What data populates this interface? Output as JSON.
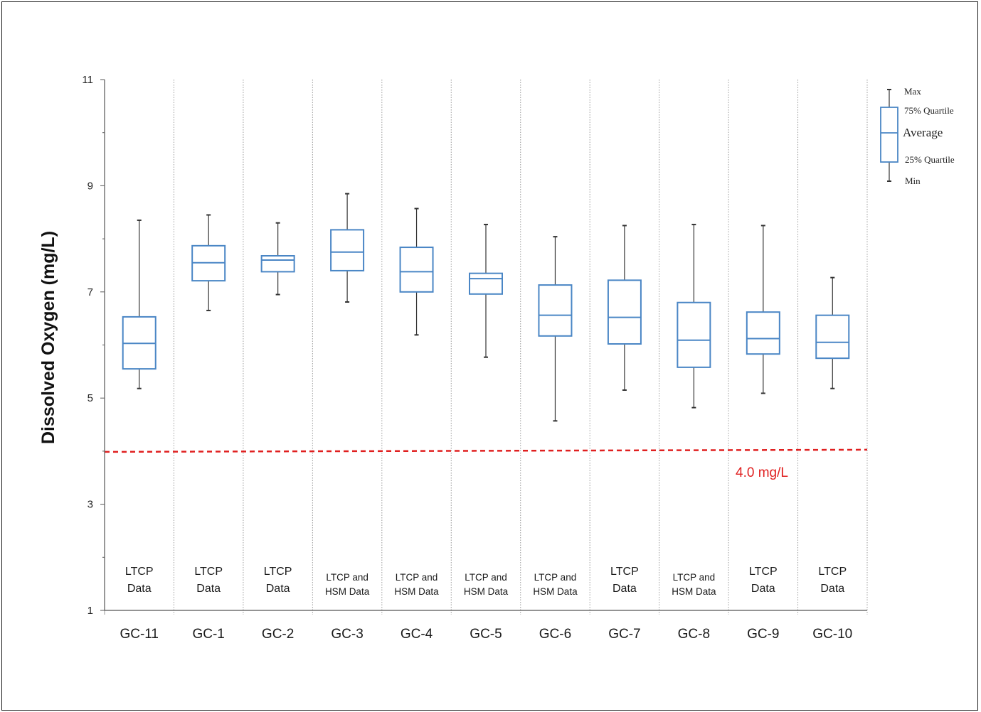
{
  "chart_data": {
    "type": "box",
    "title": "",
    "xlabel": "",
    "ylabel": "Dissolved Oxygen (mg/L)",
    "ylim": [
      1,
      11
    ],
    "yticks": [
      1,
      3,
      5,
      7,
      9,
      11
    ],
    "grid": "vertical dotted separators between stations",
    "categories": [
      "GC-11",
      "GC-1",
      "GC-2",
      "GC-3",
      "GC-4",
      "GC-5",
      "GC-6",
      "GC-7",
      "GC-8",
      "GC-9",
      "GC-10"
    ],
    "data_sources": [
      [
        "LTCP",
        "Data"
      ],
      [
        "LTCP",
        "Data"
      ],
      [
        "LTCP",
        "Data"
      ],
      [
        "LTCP and",
        "HSM Data"
      ],
      [
        "LTCP and",
        "HSM Data"
      ],
      [
        "LTCP and",
        "HSM Data"
      ],
      [
        "LTCP and",
        "HSM Data"
      ],
      [
        "LTCP",
        "Data"
      ],
      [
        "LTCP and",
        "HSM Data"
      ],
      [
        "LTCP",
        "Data"
      ],
      [
        "LTCP",
        "Data"
      ]
    ],
    "boxes": [
      {
        "min": 5.18,
        "q1": 5.55,
        "avg": 6.03,
        "q3": 6.53,
        "max": 8.35
      },
      {
        "min": 6.65,
        "q1": 7.21,
        "avg": 7.55,
        "q3": 7.87,
        "max": 8.45
      },
      {
        "min": 6.95,
        "q1": 7.38,
        "avg": 7.6,
        "q3": 7.68,
        "max": 8.3
      },
      {
        "min": 6.81,
        "q1": 7.4,
        "avg": 7.75,
        "q3": 8.17,
        "max": 8.85
      },
      {
        "min": 6.19,
        "q1": 7.0,
        "avg": 7.38,
        "q3": 7.84,
        "max": 8.57
      },
      {
        "min": 5.77,
        "q1": 6.96,
        "avg": 7.25,
        "q3": 7.35,
        "max": 8.27
      },
      {
        "min": 4.57,
        "q1": 6.17,
        "avg": 6.56,
        "q3": 7.13,
        "max": 8.04
      },
      {
        "min": 5.15,
        "q1": 6.02,
        "avg": 6.52,
        "q3": 7.22,
        "max": 8.25
      },
      {
        "min": 4.82,
        "q1": 5.58,
        "avg": 6.09,
        "q3": 6.8,
        "max": 8.27
      },
      {
        "min": 5.09,
        "q1": 5.83,
        "avg": 6.12,
        "q3": 6.62,
        "max": 8.25
      },
      {
        "min": 5.18,
        "q1": 5.75,
        "avg": 6.05,
        "q3": 6.56,
        "max": 7.27
      }
    ],
    "threshold": {
      "value": 4.0,
      "label": "4.0 mg/L",
      "color": "#e02020",
      "style": "dashed"
    },
    "box_color": "#4a86c5",
    "whisker_color": "#333333",
    "legend": {
      "placement": "top-right",
      "items": [
        "Max",
        "75% Quartile",
        "Average",
        "25% Quartile",
        "Min"
      ]
    }
  }
}
